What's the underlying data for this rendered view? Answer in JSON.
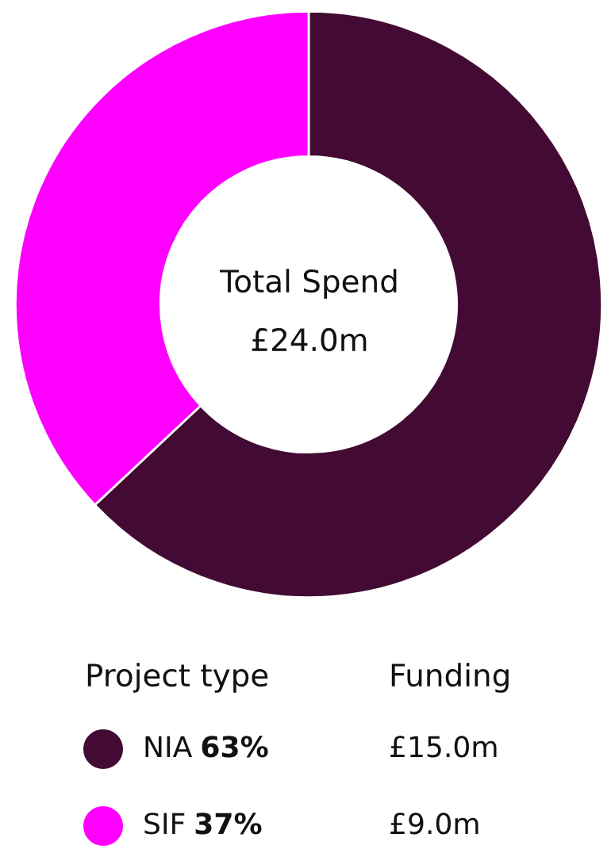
{
  "chart_data": {
    "type": "donut",
    "categories": [
      "NIA",
      "SIF"
    ],
    "values": [
      63,
      37
    ],
    "colors": [
      "#430b33",
      "#ff00ff"
    ],
    "value_labels": [
      "63%",
      "37%"
    ],
    "legend_title": "Project type",
    "legend": "bottom",
    "annotations": [
      "Total Spend",
      "£24.0m",
      "Funding",
      "£15.0m",
      "£9.0m"
    ]
  }
}
